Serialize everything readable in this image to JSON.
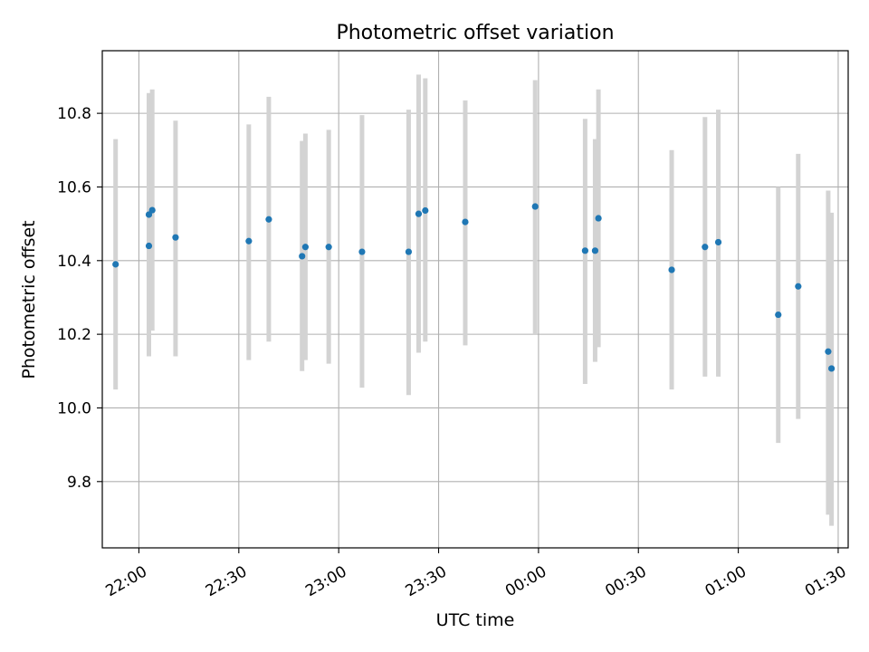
{
  "chart_data": {
    "type": "scatter",
    "title": "Photometric offset variation",
    "xlabel": "UTC time",
    "ylabel": "Photometric offset",
    "x_axis": {
      "kind": "time",
      "range": [
        "21:49",
        "01:33"
      ],
      "ticks": [
        "22:00",
        "22:30",
        "23:00",
        "23:30",
        "00:00",
        "00:30",
        "01:00",
        "01:30"
      ]
    },
    "y_axis": {
      "range": [
        9.62,
        10.97
      ],
      "ticks": [
        "9.8",
        "10.0",
        "10.2",
        "10.4",
        "10.6",
        "10.8"
      ]
    },
    "grid": true,
    "colors": {
      "point": "#1f77b4",
      "errorbar": "#d3d3d3"
    },
    "points": [
      {
        "t": "21:53",
        "y": 10.39,
        "lo": 10.05,
        "hi": 10.73
      },
      {
        "t": "22:03",
        "y": 10.44,
        "lo": 10.14,
        "hi": 10.74
      },
      {
        "t": "22:03",
        "y": 10.525,
        "lo": 10.14,
        "hi": 10.855
      },
      {
        "t": "22:04",
        "y": 10.537,
        "lo": 10.21,
        "hi": 10.865
      },
      {
        "t": "22:11",
        "y": 10.463,
        "lo": 10.14,
        "hi": 10.78
      },
      {
        "t": "22:33",
        "y": 10.453,
        "lo": 10.13,
        "hi": 10.77
      },
      {
        "t": "22:39",
        "y": 10.512,
        "lo": 10.18,
        "hi": 10.845
      },
      {
        "t": "22:49",
        "y": 10.412,
        "lo": 10.1,
        "hi": 10.725
      },
      {
        "t": "22:50",
        "y": 10.437,
        "lo": 10.13,
        "hi": 10.745
      },
      {
        "t": "22:57",
        "y": 10.437,
        "lo": 10.12,
        "hi": 10.755
      },
      {
        "t": "23:07",
        "y": 10.424,
        "lo": 10.055,
        "hi": 10.795
      },
      {
        "t": "23:21",
        "y": 10.424,
        "lo": 10.035,
        "hi": 10.81
      },
      {
        "t": "23:24",
        "y": 10.527,
        "lo": 10.15,
        "hi": 10.905
      },
      {
        "t": "23:26",
        "y": 10.536,
        "lo": 10.18,
        "hi": 10.895
      },
      {
        "t": "23:38",
        "y": 10.505,
        "lo": 10.17,
        "hi": 10.835
      },
      {
        "t": "23:59",
        "y": 10.547,
        "lo": 10.2,
        "hi": 10.89
      },
      {
        "t": "00:14",
        "y": 10.427,
        "lo": 10.065,
        "hi": 10.785
      },
      {
        "t": "00:17",
        "y": 10.427,
        "lo": 10.125,
        "hi": 10.73
      },
      {
        "t": "00:18",
        "y": 10.515,
        "lo": 10.165,
        "hi": 10.865
      },
      {
        "t": "00:40",
        "y": 10.375,
        "lo": 10.05,
        "hi": 10.7
      },
      {
        "t": "00:50",
        "y": 10.437,
        "lo": 10.085,
        "hi": 10.79
      },
      {
        "t": "00:54",
        "y": 10.45,
        "lo": 10.085,
        "hi": 10.81
      },
      {
        "t": "01:12",
        "y": 10.253,
        "lo": 9.905,
        "hi": 10.6
      },
      {
        "t": "01:18",
        "y": 10.33,
        "lo": 9.97,
        "hi": 10.69
      },
      {
        "t": "01:27",
        "y": 10.153,
        "lo": 9.71,
        "hi": 10.59
      },
      {
        "t": "01:28",
        "y": 10.107,
        "lo": 9.68,
        "hi": 10.53
      }
    ]
  }
}
